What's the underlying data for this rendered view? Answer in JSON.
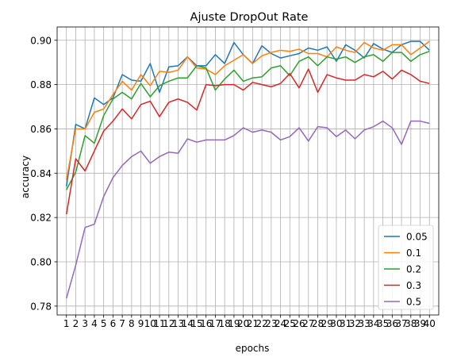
{
  "chart_data": {
    "type": "line",
    "title": "Ajuste DropOut Rate",
    "xlabel": "epochs",
    "ylabel": "accuracy",
    "grid": true,
    "legend_position": "bottom-right",
    "xlim": [
      0,
      41
    ],
    "ylim": [
      0.776,
      0.906
    ],
    "x": [
      1,
      2,
      3,
      4,
      5,
      6,
      7,
      8,
      9,
      10,
      11,
      12,
      13,
      14,
      15,
      16,
      17,
      18,
      19,
      20,
      21,
      22,
      23,
      24,
      25,
      26,
      27,
      28,
      29,
      30,
      31,
      32,
      33,
      34,
      35,
      36,
      37,
      38,
      39,
      40
    ],
    "x_tick_labels": [
      "1",
      "2",
      "3",
      "4",
      "5",
      "6",
      "7",
      "8",
      "9",
      "10",
      "11",
      "12",
      "13",
      "14",
      "15",
      "16",
      "17",
      "18",
      "19",
      "20",
      "21",
      "22",
      "23",
      "24",
      "25",
      "26",
      "27",
      "28",
      "29",
      "30",
      "31",
      "32",
      "33",
      "34",
      "35",
      "36",
      "37",
      "38",
      "39",
      "40"
    ],
    "y_ticks": [
      0.78,
      0.8,
      0.82,
      0.84,
      0.86,
      0.88,
      0.9
    ],
    "y_tick_labels": [
      "0.78",
      "0.80",
      "0.82",
      "0.84",
      "0.86",
      "0.88",
      "0.90"
    ],
    "series": [
      {
        "name": "0.05",
        "color": "#1f77b4",
        "values": [
          0.834,
          0.862,
          0.86,
          0.874,
          0.871,
          0.874,
          0.8845,
          0.882,
          0.8815,
          0.8895,
          0.8765,
          0.888,
          0.8885,
          0.8925,
          0.8885,
          0.8885,
          0.8935,
          0.8895,
          0.899,
          0.8935,
          0.8895,
          0.8975,
          0.894,
          0.892,
          0.893,
          0.894,
          0.8965,
          0.8955,
          0.897,
          0.8905,
          0.898,
          0.8955,
          0.892,
          0.8985,
          0.896,
          0.8945,
          0.898,
          0.8995,
          0.8995,
          0.8955
        ]
      },
      {
        "name": "0.1",
        "color": "#ff7f0e",
        "values": [
          0.837,
          0.86,
          0.86,
          0.8675,
          0.869,
          0.8755,
          0.8815,
          0.8775,
          0.8845,
          0.8795,
          0.886,
          0.8855,
          0.8865,
          0.8925,
          0.8875,
          0.887,
          0.8845,
          0.8885,
          0.891,
          0.8935,
          0.8895,
          0.893,
          0.8945,
          0.8955,
          0.895,
          0.896,
          0.894,
          0.894,
          0.8925,
          0.897,
          0.8955,
          0.8945,
          0.899,
          0.8965,
          0.8955,
          0.898,
          0.898,
          0.8935,
          0.8965,
          0.8995
        ]
      },
      {
        "name": "0.2",
        "color": "#2ca02c",
        "values": [
          0.8325,
          0.8405,
          0.857,
          0.8535,
          0.866,
          0.8735,
          0.8765,
          0.8735,
          0.8805,
          0.8745,
          0.8795,
          0.8815,
          0.883,
          0.883,
          0.8885,
          0.8875,
          0.8775,
          0.8825,
          0.8865,
          0.8815,
          0.883,
          0.8835,
          0.8875,
          0.8885,
          0.884,
          0.8905,
          0.8925,
          0.8885,
          0.8925,
          0.8915,
          0.8925,
          0.89,
          0.8925,
          0.8935,
          0.8905,
          0.8945,
          0.8945,
          0.8905,
          0.8935,
          0.895
        ]
      },
      {
        "name": "0.3",
        "color": "#d62728",
        "values": [
          0.8215,
          0.8465,
          0.841,
          0.85,
          0.859,
          0.8635,
          0.869,
          0.8645,
          0.871,
          0.8725,
          0.8655,
          0.872,
          0.8735,
          0.872,
          0.8685,
          0.88,
          0.8795,
          0.88,
          0.88,
          0.8775,
          0.881,
          0.88,
          0.879,
          0.8805,
          0.885,
          0.8785,
          0.887,
          0.8765,
          0.8845,
          0.883,
          0.882,
          0.882,
          0.8845,
          0.8835,
          0.886,
          0.8825,
          0.8865,
          0.8845,
          0.8815,
          0.8805
        ]
      },
      {
        "name": "0.5",
        "color": "#9467bd",
        "values": [
          0.7835,
          0.7985,
          0.8155,
          0.817,
          0.8295,
          0.838,
          0.8435,
          0.8475,
          0.85,
          0.8445,
          0.8475,
          0.8495,
          0.849,
          0.8555,
          0.854,
          0.855,
          0.855,
          0.855,
          0.857,
          0.8605,
          0.8585,
          0.8595,
          0.8585,
          0.855,
          0.8565,
          0.8605,
          0.8545,
          0.861,
          0.8605,
          0.8565,
          0.8595,
          0.8555,
          0.8595,
          0.861,
          0.8635,
          0.8605,
          0.853,
          0.8635,
          0.8635,
          0.8625
        ]
      }
    ]
  }
}
